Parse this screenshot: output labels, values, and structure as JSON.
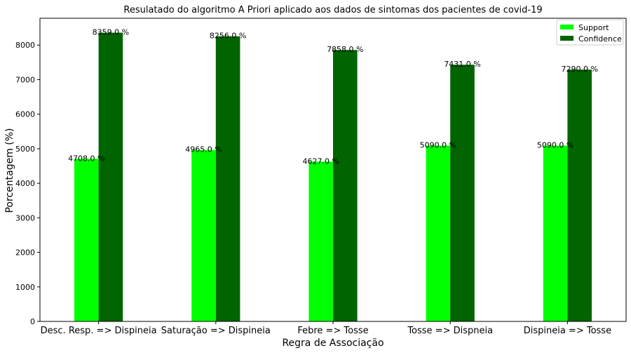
{
  "chart_data": {
    "type": "bar",
    "title": "Resulatado do algoritmo A Priori aplicado aos dados de sintomas dos pacientes de covid-19",
    "xlabel": "Regra de Associação",
    "ylabel": "Porcentagem (%)",
    "categories": [
      "Desc. Resp. => Dispineia",
      "Saturação => Dispineia",
      "Febre => Tosse",
      "Tosse => Dispneia",
      "Dispineia => Tosse"
    ],
    "series": [
      {
        "name": "Support",
        "color": "#00ff00",
        "values": [
          4708,
          4965,
          4627,
          5090,
          5090
        ],
        "labels": [
          "4708.0 %",
          "4965.0 %",
          "4627.0 %",
          "5090.0 %",
          "5090.0 %"
        ]
      },
      {
        "name": "Confidence",
        "color": "#006400",
        "values": [
          8359,
          8256,
          7858,
          7431,
          7290
        ],
        "labels": [
          "8359.0 %",
          "8256.0 %",
          "7858.0 %",
          "7431.0 %",
          "7290.0 %"
        ]
      }
    ],
    "ylim": [
      0,
      8777
    ],
    "yticks": [
      0,
      1000,
      2000,
      3000,
      4000,
      5000,
      6000,
      7000,
      8000
    ],
    "grid": false,
    "legend_position": "top-right"
  }
}
